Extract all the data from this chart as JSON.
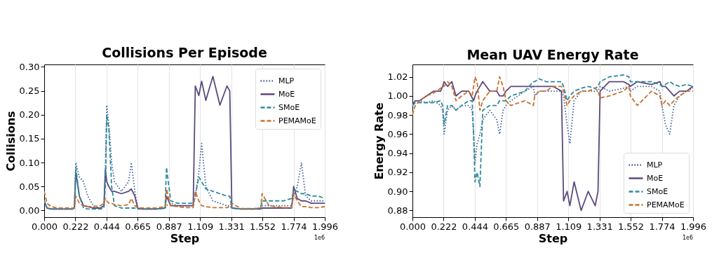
{
  "chart_data": [
    {
      "type": "line",
      "title": "Collisions Per Episode",
      "xlabel": "Step",
      "ylabel": "Collisions",
      "annotations": [
        "1e6"
      ],
      "x": [
        0,
        0.02,
        0.05,
        0.1,
        0.15,
        0.2,
        0.215,
        0.225,
        0.25,
        0.28,
        0.31,
        0.35,
        0.4,
        0.425,
        0.435,
        0.445,
        0.46,
        0.48,
        0.5,
        0.55,
        0.6,
        0.62,
        0.645,
        0.665,
        0.7,
        0.8,
        0.86,
        0.87,
        0.9,
        0.95,
        1.0,
        1.06,
        1.075,
        1.1,
        1.12,
        1.15,
        1.2,
        1.25,
        1.3,
        1.32,
        1.335,
        1.4,
        1.5,
        1.54,
        1.55,
        1.6,
        1.7,
        1.76,
        1.775,
        1.8,
        1.83,
        1.86,
        1.9,
        1.95,
        1.996
      ],
      "series": [
        {
          "name": "MLP",
          "color": "#3a5f9a",
          "line_style": "dotted",
          "values": [
            0.02,
            0.005,
            0.003,
            0.003,
            0.003,
            0.003,
            0.005,
            0.1,
            0.07,
            0.06,
            0.03,
            0.01,
            0.005,
            0.01,
            0.08,
            0.22,
            0.18,
            0.1,
            0.06,
            0.04,
            0.06,
            0.1,
            0.04,
            0.005,
            0.003,
            0.003,
            0.005,
            0.01,
            0.015,
            0.01,
            0.01,
            0.01,
            0.03,
            0.08,
            0.14,
            0.05,
            0.02,
            0.015,
            0.01,
            0.01,
            0.005,
            0.003,
            0.004,
            0.005,
            0.01,
            0.01,
            0.01,
            0.01,
            0.03,
            0.05,
            0.1,
            0.03,
            0.02,
            0.02,
            0.02
          ]
        },
        {
          "name": "MoE",
          "color": "#5c4a7d",
          "line_style": "solid",
          "values": [
            0.02,
            0.005,
            0.003,
            0.003,
            0.003,
            0.003,
            0.005,
            0.08,
            0.03,
            0.01,
            0.008,
            0.005,
            0.005,
            0.01,
            0.085,
            0.06,
            0.05,
            0.04,
            0.04,
            0.035,
            0.04,
            0.045,
            0.03,
            0.005,
            0.003,
            0.003,
            0.005,
            0.03,
            0.01,
            0.01,
            0.01,
            0.01,
            0.26,
            0.24,
            0.27,
            0.23,
            0.28,
            0.22,
            0.26,
            0.25,
            0.005,
            0.003,
            0.003,
            0.003,
            0.005,
            0.005,
            0.005,
            0.005,
            0.05,
            0.025,
            0.02,
            0.02,
            0.015,
            0.015,
            0.015
          ]
        },
        {
          "name": "SMoE",
          "color": "#2e8a9a",
          "line_style": "dashed",
          "values": [
            0.02,
            0.005,
            0.003,
            0.003,
            0.003,
            0.003,
            0.005,
            0.09,
            0.03,
            0.005,
            0.003,
            0.003,
            0.003,
            0.005,
            0.05,
            0.2,
            0.17,
            0.05,
            0.01,
            0.005,
            0.005,
            0.005,
            0.005,
            0.003,
            0.003,
            0.003,
            0.005,
            0.09,
            0.02,
            0.015,
            0.015,
            0.015,
            0.03,
            0.07,
            0.06,
            0.045,
            0.04,
            0.035,
            0.03,
            0.03,
            0.005,
            0.003,
            0.003,
            0.005,
            0.02,
            0.02,
            0.02,
            0.025,
            0.04,
            0.04,
            0.035,
            0.035,
            0.03,
            0.03,
            0.025
          ]
        },
        {
          "name": "PEMAMoE",
          "color": "#c8702f",
          "line_style": "dashed",
          "values": [
            0.04,
            0.015,
            0.008,
            0.005,
            0.005,
            0.005,
            0.005,
            0.03,
            0.015,
            0.01,
            0.008,
            0.008,
            0.01,
            0.015,
            0.025,
            0.02,
            0.015,
            0.015,
            0.012,
            0.01,
            0.012,
            0.025,
            0.01,
            0.006,
            0.005,
            0.005,
            0.008,
            0.045,
            0.01,
            0.008,
            0.006,
            0.006,
            0.04,
            0.02,
            0.01,
            0.008,
            0.006,
            0.006,
            0.006,
            0.008,
            0.015,
            0.004,
            0.004,
            0.005,
            0.035,
            0.01,
            0.006,
            0.006,
            0.035,
            0.02,
            0.008,
            0.008,
            0.006,
            0.006,
            0.008
          ]
        }
      ],
      "xlim": [
        0,
        1.996
      ],
      "xticks": [
        {
          "value": 0,
          "label": "0.000"
        },
        0.222,
        0.444,
        0.665,
        0.887,
        1.109,
        1.331,
        1.552,
        1.774,
        1.996
      ],
      "ylim": [
        -0.014,
        0.305
      ],
      "yticks": [
        {
          "value": 0,
          "label": "0.00"
        },
        0.05,
        {
          "value": 0.1,
          "label": "0.10"
        },
        0.15,
        {
          "value": 0.2,
          "label": "0.20"
        },
        0.25,
        {
          "value": 0.3,
          "label": "0.30"
        }
      ],
      "grid": "x",
      "legend": "top right"
    },
    {
      "type": "line",
      "title": "Mean UAV Energy Rate",
      "xlabel": "Step",
      "ylabel": "Energy Rate",
      "annotations": [
        "1e6"
      ],
      "x": [
        0,
        0.02,
        0.05,
        0.1,
        0.15,
        0.2,
        0.215,
        0.225,
        0.25,
        0.28,
        0.31,
        0.35,
        0.4,
        0.425,
        0.435,
        0.445,
        0.46,
        0.48,
        0.5,
        0.55,
        0.6,
        0.62,
        0.645,
        0.665,
        0.7,
        0.8,
        0.86,
        0.87,
        0.9,
        0.95,
        1.0,
        1.06,
        1.075,
        1.1,
        1.12,
        1.15,
        1.2,
        1.25,
        1.3,
        1.32,
        1.335,
        1.4,
        1.5,
        1.54,
        1.55,
        1.6,
        1.7,
        1.76,
        1.775,
        1.8,
        1.83,
        1.86,
        1.9,
        1.95,
        1.996
      ],
      "series": [
        {
          "name": "MLP",
          "color": "#3a5f9a",
          "line_style": "dotted",
          "values": [
            0.99,
            0.995,
            0.995,
            0.993,
            0.995,
            0.99,
            0.985,
            0.96,
            0.985,
            0.99,
            0.985,
            0.99,
            0.99,
            0.985,
            0.96,
            0.93,
            0.95,
            0.96,
            0.975,
            0.985,
            0.975,
            0.96,
            0.985,
            0.99,
            0.995,
            1.005,
            1.01,
            1.0,
            1.005,
            1.005,
            1.005,
            1.005,
            1.0,
            0.97,
            0.95,
            0.995,
            1.005,
            1.005,
            1.005,
            1.005,
            1.01,
            1.005,
            1.008,
            1.01,
            1.005,
            1.01,
            1.01,
            1.005,
            0.99,
            0.97,
            0.96,
            0.99,
            1.0,
            1.005,
            1.008
          ]
        },
        {
          "name": "MoE",
          "color": "#5c4a7d",
          "line_style": "solid",
          "values": [
            0.99,
            0.995,
            0.995,
            1.0,
            1.005,
            1.005,
            1.01,
            1.015,
            1.01,
            1.015,
            1.0,
            1.005,
            1.005,
            0.998,
            0.995,
            1.0,
            1.005,
            1.01,
            1.015,
            1.005,
            1.005,
            1.0,
            1.0,
            1.005,
            1.01,
            1.01,
            1.01,
            1.01,
            1.01,
            1.01,
            1.01,
            1.005,
            0.89,
            0.9,
            0.885,
            0.91,
            0.88,
            0.9,
            0.885,
            0.9,
            1.005,
            1.015,
            1.015,
            1.012,
            1.01,
            1.015,
            1.012,
            1.015,
            1.01,
            1.01,
            1.005,
            1.0,
            1.005,
            1.005,
            1.01
          ]
        },
        {
          "name": "SMoE",
          "color": "#2e8a9a",
          "line_style": "dashed",
          "values": [
            0.99,
            0.993,
            0.993,
            0.993,
            0.993,
            0.995,
            0.99,
            0.97,
            0.99,
            0.99,
            0.985,
            0.99,
            0.995,
            0.995,
            0.96,
            0.91,
            0.92,
            0.905,
            0.985,
            0.99,
            0.99,
            0.995,
            0.995,
            0.995,
            1.0,
            1.005,
            1.015,
            1.015,
            1.018,
            1.015,
            1.015,
            1.015,
            1.01,
            0.995,
            1.0,
            1.005,
            1.008,
            1.01,
            1.008,
            1.01,
            1.015,
            1.02,
            1.022,
            1.02,
            1.015,
            1.015,
            1.015,
            1.012,
            1.01,
            1.012,
            1.015,
            1.012,
            1.01,
            1.012,
            1.01
          ]
        },
        {
          "name": "PEMAMoE",
          "color": "#c8702f",
          "line_style": "dashed",
          "values": [
            0.98,
            0.99,
            0.995,
            1.0,
            1.003,
            1.008,
            1.01,
            1.01,
            1.015,
            1.01,
            0.995,
            1.0,
            1.005,
            1.0,
            1.01,
            1.02,
            1.015,
            0.985,
            0.995,
            1.005,
            1.005,
            1.02,
            1.01,
            0.995,
            0.99,
            0.995,
            0.99,
            1.0,
            1.005,
            1.005,
            1.01,
            1.01,
            1.005,
            0.99,
            0.995,
            1.0,
            1.005,
            1.005,
            1.008,
            1.005,
            0.998,
            1.0,
            1.005,
            1.01,
            1.0,
            0.99,
            1.005,
            1.0,
            0.99,
            0.995,
            0.99,
            0.995,
            1.0,
            1.005,
            1.005
          ]
        }
      ],
      "xlim": [
        0,
        1.996
      ],
      "xticks": [
        {
          "value": 0,
          "label": "0.000"
        },
        0.222,
        0.444,
        0.665,
        0.887,
        1.109,
        1.331,
        1.552,
        1.774,
        1.996
      ],
      "ylim": [
        0.873,
        1.033
      ],
      "yticks": [
        0.88,
        {
          "value": 0.9,
          "label": "0.90"
        },
        0.92,
        0.94,
        0.96,
        0.98,
        {
          "value": 1.0,
          "label": "1.00"
        },
        1.02
      ],
      "grid": "x",
      "legend": "bottom right"
    }
  ]
}
